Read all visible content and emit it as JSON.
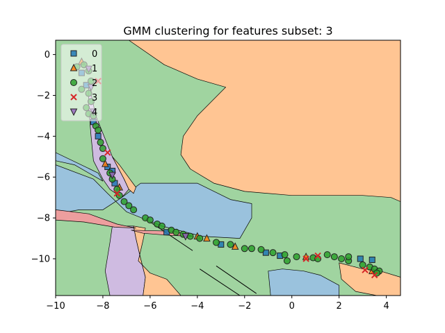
{
  "chart_data": {
    "type": "scatter",
    "title": "GMM clustering for features subset: 3",
    "xlabel": "",
    "ylabel": "",
    "xlim": [
      -10,
      4.6
    ],
    "ylim": [
      -11.8,
      0.7
    ],
    "xticks": [
      -10,
      -8,
      -6,
      -4,
      -2,
      0,
      2,
      4
    ],
    "yticks": [
      0,
      -2,
      -4,
      -6,
      -8,
      -10
    ],
    "grid": false,
    "legend_position": "top-left",
    "region_colors": {
      "0": "#1f77b4",
      "1": "#ff7f0e",
      "2": "#2ca02c",
      "3": "#d62728",
      "4": "#9467bd"
    },
    "series": [
      {
        "name": "0",
        "marker": "square",
        "color": "#1f77b4",
        "points": [
          [
            -8.9,
            -0.9
          ],
          [
            -8.7,
            -1.5
          ],
          [
            -8.4,
            -3.3
          ],
          [
            -8.2,
            -4.0
          ],
          [
            -7.8,
            -5.5
          ],
          [
            -7.6,
            -5.7
          ],
          [
            -7.5,
            -6.3
          ],
          [
            -5.3,
            -8.7
          ],
          [
            -3.0,
            -9.3
          ],
          [
            -1.1,
            -9.7
          ],
          [
            -0.5,
            -9.85
          ],
          [
            2.9,
            -10.0
          ],
          [
            3.4,
            -10.05
          ]
        ]
      },
      {
        "name": "1",
        "marker": "triangle-up",
        "color": "#ff7f0e",
        "points": [
          [
            -8.9,
            -0.35
          ],
          [
            -7.9,
            -5.35
          ],
          [
            -7.3,
            -6.5
          ],
          [
            -4.0,
            -8.9
          ],
          [
            -3.6,
            -9.0
          ],
          [
            -2.4,
            -9.4
          ],
          [
            0.6,
            -9.9
          ],
          [
            3.4,
            -10.6
          ]
        ]
      },
      {
        "name": "2",
        "marker": "circle",
        "color": "#2ca02c",
        "points": [
          [
            -9.1,
            -0.6
          ],
          [
            -8.8,
            -0.5
          ],
          [
            -8.6,
            -0.8
          ],
          [
            -8.5,
            -1.3
          ],
          [
            -8.9,
            -1.7
          ],
          [
            -8.6,
            -1.9
          ],
          [
            -8.5,
            -2.3
          ],
          [
            -8.7,
            -2.6
          ],
          [
            -8.6,
            -2.9
          ],
          [
            -8.4,
            -3.0
          ],
          [
            -8.3,
            -3.5
          ],
          [
            -8.2,
            -3.7
          ],
          [
            -8.1,
            -4.3
          ],
          [
            -8.0,
            -4.6
          ],
          [
            -8.0,
            -5.1
          ],
          [
            -7.7,
            -5.8
          ],
          [
            -7.6,
            -6.1
          ],
          [
            -7.4,
            -6.6
          ],
          [
            -7.3,
            -6.9
          ],
          [
            -7.1,
            -7.2
          ],
          [
            -6.9,
            -7.4
          ],
          [
            -6.7,
            -7.6
          ],
          [
            -6.2,
            -8.0
          ],
          [
            -6.0,
            -8.1
          ],
          [
            -5.7,
            -8.3
          ],
          [
            -5.5,
            -8.4
          ],
          [
            -5.1,
            -8.6
          ],
          [
            -4.9,
            -8.7
          ],
          [
            -4.6,
            -8.8
          ],
          [
            -4.3,
            -8.9
          ],
          [
            -3.9,
            -9.0
          ],
          [
            -3.2,
            -9.2
          ],
          [
            -2.6,
            -9.3
          ],
          [
            -2.0,
            -9.5
          ],
          [
            -1.7,
            -9.5
          ],
          [
            -1.3,
            -9.55
          ],
          [
            -0.8,
            -9.7
          ],
          [
            -0.3,
            -9.8
          ],
          [
            0.2,
            -9.9
          ],
          [
            0.9,
            -9.95
          ],
          [
            1.5,
            -9.8
          ],
          [
            1.8,
            -9.9
          ],
          [
            2.1,
            -10.0
          ],
          [
            2.4,
            -10.1
          ],
          [
            3.0,
            -10.3
          ],
          [
            3.3,
            -10.4
          ],
          [
            3.5,
            -10.5
          ],
          [
            3.7,
            -10.6
          ],
          [
            -0.2,
            -10.1
          ],
          [
            1.1,
            -10.0
          ],
          [
            3.6,
            -10.7
          ],
          [
            2.4,
            -9.9
          ]
        ]
      },
      {
        "name": "3",
        "marker": "x",
        "color": "#d62728",
        "points": [
          [
            -8.2,
            -1.3
          ],
          [
            -7.8,
            -4.8
          ],
          [
            -7.4,
            -6.8
          ],
          [
            0.6,
            -10.0
          ],
          [
            1.1,
            -9.85
          ],
          [
            3.1,
            -10.55
          ],
          [
            3.5,
            -10.8
          ]
        ]
      },
      {
        "name": "4",
        "marker": "triangle-down",
        "color": "#9467bd",
        "points": [
          [
            -8.6,
            -0.7
          ],
          [
            -8.5,
            -1.6
          ],
          [
            -8.4,
            -2.8
          ],
          [
            -7.6,
            -5.9
          ],
          [
            -4.5,
            -8.9
          ]
        ]
      }
    ]
  }
}
